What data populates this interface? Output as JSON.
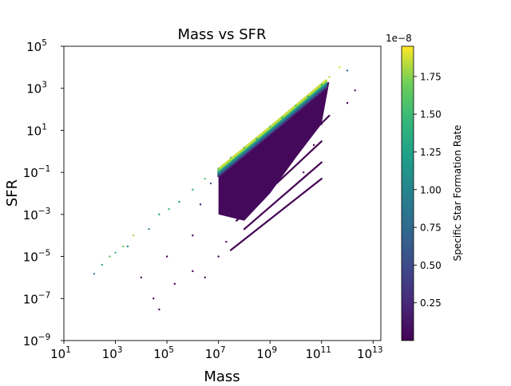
{
  "chart_data": {
    "type": "scatter",
    "title": "Mass vs SFR",
    "xlabel": "Mass",
    "ylabel": "SFR",
    "xscale": "log",
    "yscale": "log",
    "xlim": [
      10,
      20000000000000
    ],
    "ylim": [
      1e-09,
      100000
    ],
    "xticks": [
      {
        "value": 10,
        "base": "10",
        "exp": "1"
      },
      {
        "value": 1000,
        "base": "10",
        "exp": "3"
      },
      {
        "value": 100000,
        "base": "10",
        "exp": "5"
      },
      {
        "value": 10000000,
        "base": "10",
        "exp": "7"
      },
      {
        "value": 1000000000,
        "base": "10",
        "exp": "9"
      },
      {
        "value": 100000000000,
        "base": "10",
        "exp": "11"
      },
      {
        "value": 10000000000000,
        "base": "10",
        "exp": "13"
      }
    ],
    "yticks": [
      {
        "value": 1e-09,
        "base": "10",
        "exp": "−9"
      },
      {
        "value": 1e-07,
        "base": "10",
        "exp": "−7"
      },
      {
        "value": 1e-05,
        "base": "10",
        "exp": "−5"
      },
      {
        "value": 0.001,
        "base": "10",
        "exp": "−3"
      },
      {
        "value": 0.1,
        "base": "10",
        "exp": "−1"
      },
      {
        "value": 10,
        "base": "10",
        "exp": "1"
      },
      {
        "value": 1000,
        "base": "10",
        "exp": "3"
      },
      {
        "value": 100000,
        "base": "10",
        "exp": "5"
      }
    ],
    "colorbar": {
      "label": "Specific Star Formation Rate",
      "offset_text": "1e−8",
      "cmap": "viridis",
      "range": [
        0,
        1.95
      ],
      "ticks": [
        {
          "value": 0.25,
          "label": "0.25"
        },
        {
          "value": 0.5,
          "label": "0.50"
        },
        {
          "value": 0.75,
          "label": "0.75"
        },
        {
          "value": 1.0,
          "label": "1.00"
        },
        {
          "value": 1.25,
          "label": "1.25"
        },
        {
          "value": 1.5,
          "label": "1.50"
        },
        {
          "value": 1.75,
          "label": "1.75"
        }
      ]
    },
    "color_value": "SFR / Mass (units of 1e-8)",
    "points": [
      {
        "x": 150,
        "y": 1.5e-06,
        "c": 1.0
      },
      {
        "x": 300,
        "y": 4e-06,
        "c": 1.3
      },
      {
        "x": 600,
        "y": 1e-05,
        "c": 1.6
      },
      {
        "x": 1000,
        "y": 1.5e-05,
        "c": 1.5
      },
      {
        "x": 2000,
        "y": 3e-05,
        "c": 1.7
      },
      {
        "x": 3000,
        "y": 3e-05,
        "c": 1.0
      },
      {
        "x": 5000,
        "y": 0.0001,
        "c": 1.8
      },
      {
        "x": 20000,
        "y": 0.0002,
        "c": 1.0
      },
      {
        "x": 50000,
        "y": 0.001,
        "c": 1.2
      },
      {
        "x": 120000,
        "y": 0.0018,
        "c": 1.5
      },
      {
        "x": 300000,
        "y": 0.004,
        "c": 1.2
      },
      {
        "x": 1000000,
        "y": 0.015,
        "c": 1.4
      },
      {
        "x": 3000000,
        "y": 0.05,
        "c": 1.6
      },
      {
        "x": 10000000,
        "y": 0.15,
        "c": 1.5
      },
      {
        "x": 30000000,
        "y": 0.5,
        "c": 1.6
      },
      {
        "x": 100000000,
        "y": 1.5,
        "c": 1.5
      },
      {
        "x": 300000000,
        "y": 4,
        "c": 1.4
      },
      {
        "x": 1000000000,
        "y": 15,
        "c": 1.5
      },
      {
        "x": 3000000000,
        "y": 40,
        "c": 1.4
      },
      {
        "x": 10000000000,
        "y": 150,
        "c": 1.5
      },
      {
        "x": 30000000000,
        "y": 400,
        "c": 1.3
      },
      {
        "x": 100000000000,
        "y": 1500,
        "c": 1.5
      },
      {
        "x": 200000000000,
        "y": 3500,
        "c": 1.8
      },
      {
        "x": 500000000000,
        "y": 10000,
        "c": 1.9
      },
      {
        "x": 1000000000000,
        "y": 7000,
        "c": 0.7
      },
      {
        "x": 2000000000000,
        "y": 800,
        "c": 0.04
      },
      {
        "x": 1000000000000,
        "y": 200,
        "c": 0.02
      },
      {
        "x": 5000000,
        "y": 0.03,
        "c": 0.6
      },
      {
        "x": 2000000,
        "y": 0.003,
        "c": 0.15
      },
      {
        "x": 1000000,
        "y": 0.0001,
        "c": 0.01
      },
      {
        "x": 100000,
        "y": 1e-05,
        "c": 0.01
      },
      {
        "x": 10000,
        "y": 1e-06,
        "c": 0.01
      },
      {
        "x": 30000,
        "y": 1e-07,
        "c": 0.003
      },
      {
        "x": 50000,
        "y": 3e-08,
        "c": 0.001
      },
      {
        "x": 200000,
        "y": 5e-07,
        "c": 0.003
      },
      {
        "x": 1000000,
        "y": 2e-06,
        "c": 0.002
      },
      {
        "x": 3000000,
        "y": 1e-06,
        "c": 0.001
      },
      {
        "x": 10000000,
        "y": 1e-05,
        "c": 0.001
      },
      {
        "x": 20000000,
        "y": 5e-05,
        "c": 0.002
      },
      {
        "x": 100000000,
        "y": 0.001,
        "c": 0.01
      },
      {
        "x": 1000000000,
        "y": 0.05,
        "c": 0.05
      },
      {
        "x": 10000000000,
        "y": 1,
        "c": 0.02
      },
      {
        "x": 100000000000,
        "y": 20,
        "c": 0.02
      },
      {
        "x": 50000000000,
        "y": 2,
        "c": 0.004
      },
      {
        "x": 20000000000,
        "y": 0.1,
        "c": 0.001
      }
    ],
    "bands": [
      {
        "x1": 100000000,
        "y1": 0.005,
        "x2": 200000000000,
        "y2": 50,
        "c": 0.01
      },
      {
        "x1": 50000000,
        "y1": 0.0005,
        "x2": 100000000000,
        "y2": 3,
        "c": 0.003
      },
      {
        "x1": 100000000,
        "y1": 0.0002,
        "x2": 100000000000,
        "y2": 0.3,
        "c": 0.002
      },
      {
        "x1": 30000000,
        "y1": 2e-05,
        "x2": 100000000000,
        "y2": 0.05,
        "c": 0.001
      }
    ]
  }
}
